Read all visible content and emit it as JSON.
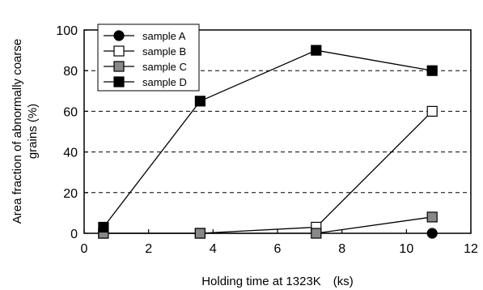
{
  "chart_data": {
    "type": "line",
    "title": "",
    "xlabel": "Holding time at 1323K　(ks)",
    "ylabel_line1": "Area fraction of abnormally coarse",
    "ylabel_line2": "grains (%)",
    "xlim": [
      0,
      12
    ],
    "ylim": [
      0,
      100
    ],
    "x_ticks": [
      "0",
      "2",
      "4",
      "6",
      "8",
      "10",
      "12"
    ],
    "y_ticks": [
      "0",
      "20",
      "40",
      "60",
      "80",
      "100"
    ],
    "grid": "horizontal dashed",
    "legend_position": "top-left",
    "series": [
      {
        "name": "sample A",
        "marker": "circle",
        "fill": "#000000",
        "line": false,
        "points": [
          [
            10.8,
            0
          ]
        ]
      },
      {
        "name": "sample B",
        "marker": "square",
        "fill": "#ffffff",
        "points": [
          [
            0.6,
            0
          ],
          [
            3.6,
            0
          ],
          [
            7.2,
            3
          ],
          [
            10.8,
            60
          ]
        ]
      },
      {
        "name": "sample C",
        "marker": "square",
        "fill": "#888888",
        "points": [
          [
            0.6,
            0
          ],
          [
            3.6,
            0
          ],
          [
            7.2,
            0
          ],
          [
            10.8,
            8
          ]
        ]
      },
      {
        "name": "sample D",
        "marker": "square",
        "fill": "#000000",
        "points": [
          [
            0.6,
            3
          ],
          [
            3.6,
            65
          ],
          [
            7.2,
            90
          ],
          [
            10.8,
            80
          ]
        ]
      }
    ]
  }
}
